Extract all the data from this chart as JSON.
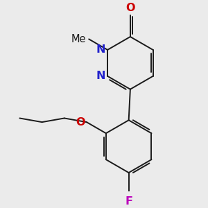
{
  "bg_color": "#ebebeb",
  "bond_color": "#1a1a1a",
  "N_color": "#2222cc",
  "O_color": "#cc0000",
  "F_color": "#bb00bb",
  "line_width": 1.4,
  "font_size": 10.5,
  "fig_size": [
    3.0,
    3.0
  ],
  "dpi": 100,
  "xlim": [
    0.0,
    6.0
  ],
  "ylim": [
    0.0,
    6.0
  ]
}
